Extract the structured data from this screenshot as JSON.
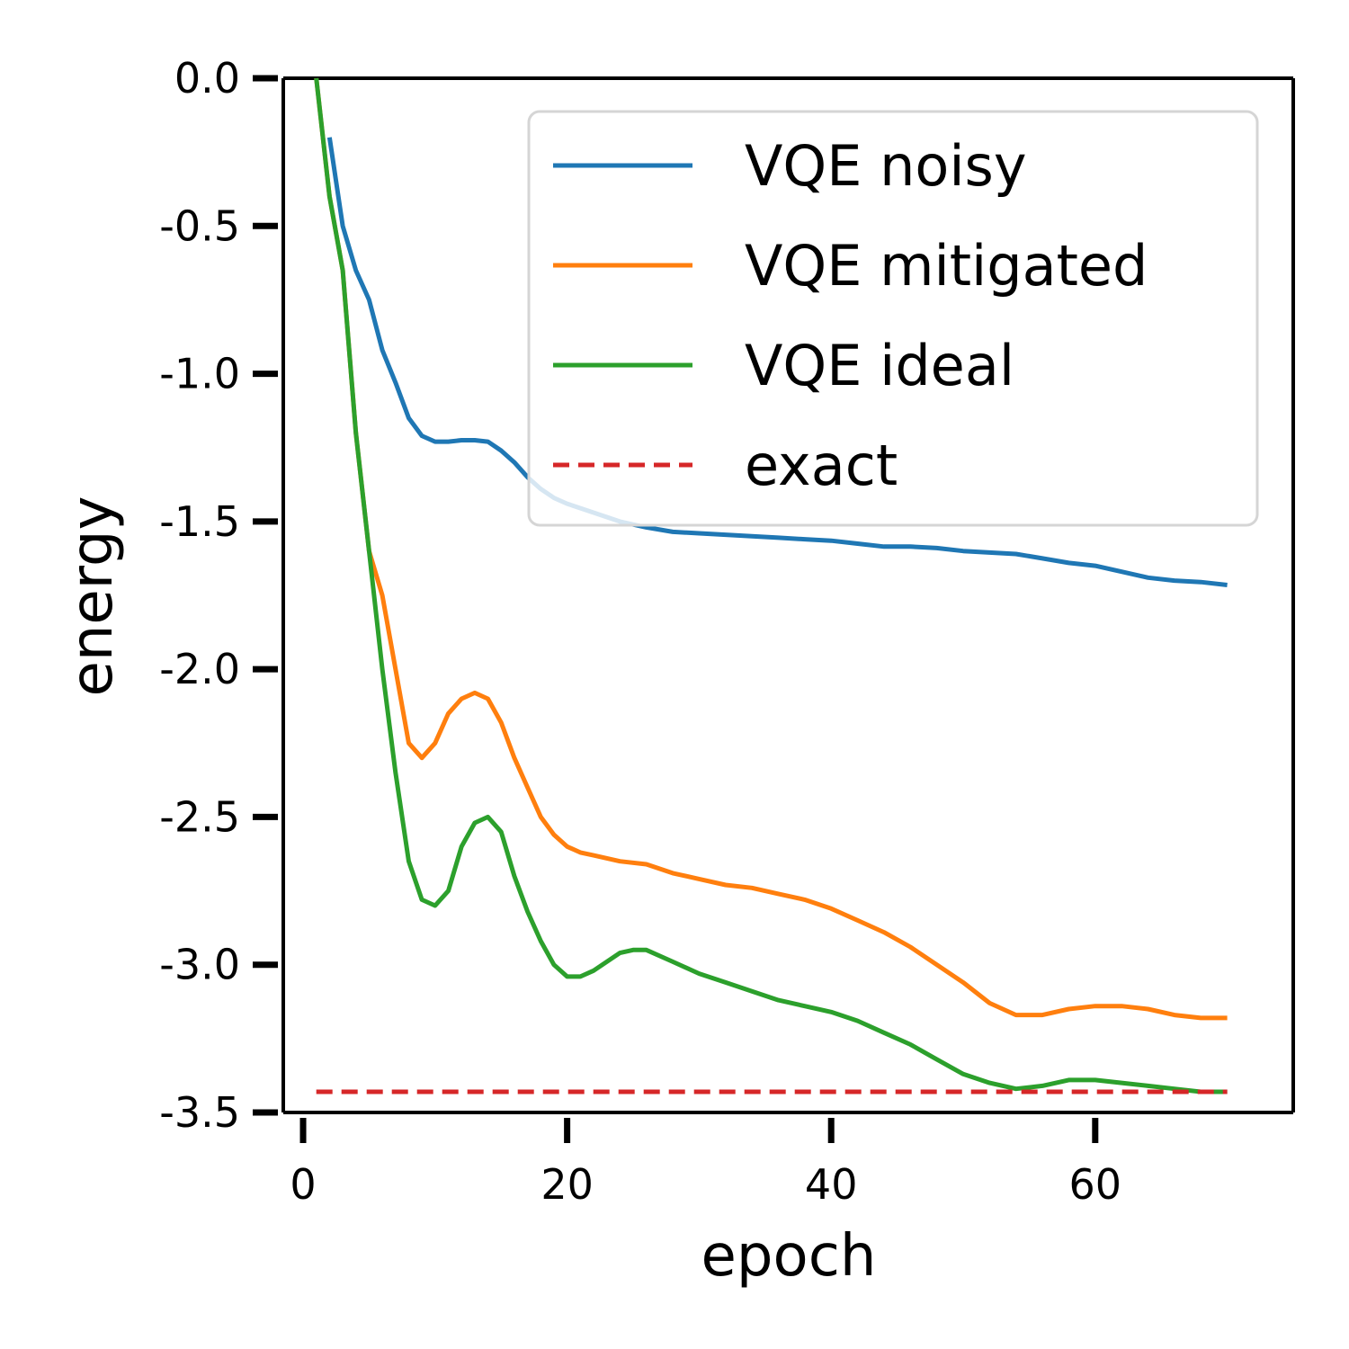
{
  "chart_data": {
    "type": "line",
    "xlabel": "epoch",
    "ylabel": "energy",
    "xlim": [
      -1.5,
      75
    ],
    "ylim": [
      -3.5,
      0.0
    ],
    "xticks": [
      0,
      20,
      40,
      60
    ],
    "xtick_labels": [
      "0",
      "20",
      "40",
      "60"
    ],
    "yticks": [
      0.0,
      -0.5,
      -1.0,
      -1.5,
      -2.0,
      -2.5,
      -3.0,
      -3.5
    ],
    "ytick_labels": [
      "0.0",
      "-0.5",
      "-1.0",
      "-1.5",
      "-2.0",
      "-2.5",
      "-3.0",
      "-3.5"
    ],
    "grid": false,
    "legend_position": "top-right",
    "series": [
      {
        "name": "VQE noisy",
        "color": "#1f77b4",
        "style": "solid",
        "x": [
          2,
          3,
          4,
          5,
          6,
          7,
          8,
          9,
          10,
          11,
          12,
          13,
          14,
          15,
          16,
          17,
          18,
          19,
          20,
          22,
          24,
          26,
          28,
          30,
          32,
          34,
          36,
          38,
          40,
          42,
          44,
          46,
          48,
          50,
          52,
          54,
          56,
          58,
          60,
          62,
          64,
          66,
          68,
          70
        ],
        "y": [
          -0.2,
          -0.5,
          -0.65,
          -0.75,
          -0.92,
          -1.03,
          -1.15,
          -1.21,
          -1.23,
          -1.23,
          -1.225,
          -1.225,
          -1.23,
          -1.26,
          -1.3,
          -1.35,
          -1.39,
          -1.42,
          -1.44,
          -1.47,
          -1.5,
          -1.52,
          -1.535,
          -1.54,
          -1.545,
          -1.55,
          -1.555,
          -1.56,
          -1.565,
          -1.575,
          -1.585,
          -1.585,
          -1.59,
          -1.6,
          -1.605,
          -1.61,
          -1.625,
          -1.64,
          -1.65,
          -1.67,
          -1.69,
          -1.7,
          -1.705,
          -1.715
        ]
      },
      {
        "name": "VQE mitigated",
        "color": "#ff7f0e",
        "style": "solid",
        "x": [
          1,
          2,
          3,
          4,
          5,
          6,
          7,
          8,
          9,
          10,
          11,
          12,
          13,
          14,
          15,
          16,
          17,
          18,
          19,
          20,
          21,
          22,
          24,
          26,
          28,
          30,
          32,
          34,
          36,
          38,
          40,
          42,
          44,
          46,
          48,
          50,
          52,
          54,
          56,
          58,
          60,
          62,
          64,
          66,
          68,
          70
        ],
        "y": [
          0.0,
          -0.4,
          -0.65,
          -1.2,
          -1.6,
          -1.75,
          -2.0,
          -2.25,
          -2.3,
          -2.25,
          -2.15,
          -2.1,
          -2.08,
          -2.1,
          -2.18,
          -2.3,
          -2.4,
          -2.5,
          -2.56,
          -2.6,
          -2.62,
          -2.63,
          -2.65,
          -2.66,
          -2.69,
          -2.71,
          -2.73,
          -2.74,
          -2.76,
          -2.78,
          -2.81,
          -2.85,
          -2.89,
          -2.94,
          -3.0,
          -3.06,
          -3.13,
          -3.17,
          -3.17,
          -3.15,
          -3.14,
          -3.14,
          -3.15,
          -3.17,
          -3.18,
          -3.18
        ]
      },
      {
        "name": "VQE ideal",
        "color": "#2ca02c",
        "style": "solid",
        "x": [
          1,
          2,
          3,
          4,
          5,
          6,
          7,
          8,
          9,
          10,
          11,
          12,
          13,
          14,
          15,
          16,
          17,
          18,
          19,
          20,
          21,
          22,
          24,
          25,
          26,
          28,
          30,
          32,
          34,
          36,
          38,
          40,
          42,
          44,
          46,
          48,
          50,
          52,
          54,
          56,
          58,
          60,
          62,
          64,
          66,
          68,
          70
        ],
        "y": [
          0.0,
          -0.4,
          -0.65,
          -1.2,
          -1.6,
          -2.0,
          -2.35,
          -2.65,
          -2.78,
          -2.8,
          -2.75,
          -2.6,
          -2.52,
          -2.5,
          -2.55,
          -2.7,
          -2.82,
          -2.92,
          -3.0,
          -3.04,
          -3.04,
          -3.02,
          -2.96,
          -2.95,
          -2.95,
          -2.99,
          -3.03,
          -3.06,
          -3.09,
          -3.12,
          -3.14,
          -3.16,
          -3.19,
          -3.23,
          -3.27,
          -3.32,
          -3.37,
          -3.4,
          -3.42,
          -3.41,
          -3.39,
          -3.39,
          -3.4,
          -3.41,
          -3.42,
          -3.43,
          -3.43
        ]
      },
      {
        "name": "exact",
        "color": "#d62728",
        "style": "dashed",
        "x": [
          1,
          70
        ],
        "y": [
          -3.43,
          -3.43
        ]
      }
    ]
  }
}
